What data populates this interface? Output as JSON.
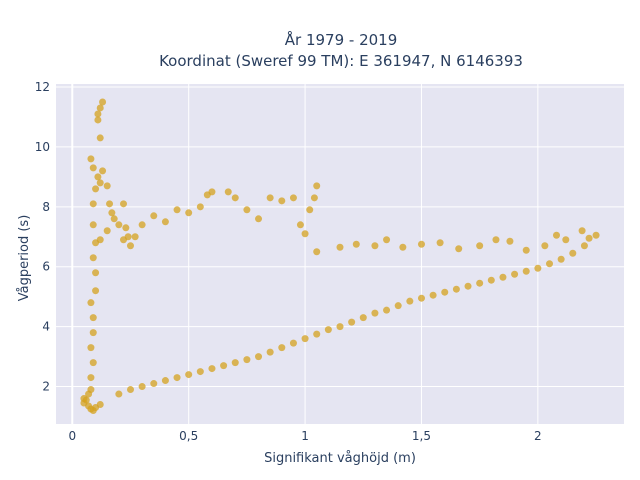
{
  "chart_data": {
    "type": "scatter",
    "title_line1": "År 1979 - 2019",
    "title_line2": "Koordinat (Sweref 99 TM): E 361947, N 6146393",
    "xlabel": "Signifikant våghöjd (m)",
    "ylabel": "Vågperiod (s)",
    "xlim": [
      -0.07,
      2.37
    ],
    "ylim": [
      0.75,
      12.1
    ],
    "x_ticks": [
      {
        "value": 0,
        "label": "0"
      },
      {
        "value": 0.5,
        "label": "0,5"
      },
      {
        "value": 1,
        "label": "1"
      },
      {
        "value": 1.5,
        "label": "1,5"
      },
      {
        "value": 2,
        "label": "2"
      }
    ],
    "y_ticks": [
      {
        "value": 2,
        "label": "2"
      },
      {
        "value": 4,
        "label": "4"
      },
      {
        "value": 6,
        "label": "6"
      },
      {
        "value": 8,
        "label": "8"
      },
      {
        "value": 10,
        "label": "10"
      },
      {
        "value": 12,
        "label": "12"
      }
    ],
    "grid": true,
    "legend": "none",
    "colors": {
      "marker": "#d4a21f",
      "plot_bg": "#e5e5f2",
      "text": "#2a3f5f"
    },
    "series": [
      {
        "marker_opacity": 0.75,
        "points": [
          [
            0.05,
            1.45
          ],
          [
            0.06,
            1.55
          ],
          [
            0.07,
            1.35
          ],
          [
            0.08,
            1.25
          ],
          [
            0.09,
            1.2
          ],
          [
            0.1,
            1.3
          ],
          [
            0.12,
            1.4
          ],
          [
            0.05,
            1.6
          ],
          [
            0.07,
            1.75
          ],
          [
            0.08,
            1.9
          ],
          [
            0.08,
            2.3
          ],
          [
            0.09,
            2.8
          ],
          [
            0.08,
            3.3
          ],
          [
            0.09,
            3.8
          ],
          [
            0.09,
            4.3
          ],
          [
            0.08,
            4.8
          ],
          [
            0.1,
            5.2
          ],
          [
            0.1,
            5.8
          ],
          [
            0.09,
            6.3
          ],
          [
            0.1,
            6.8
          ],
          [
            0.09,
            7.4
          ],
          [
            0.09,
            8.1
          ],
          [
            0.08,
            9.6
          ],
          [
            0.09,
            9.3
          ],
          [
            0.11,
            9.0
          ],
          [
            0.1,
            8.6
          ],
          [
            0.12,
            8.8
          ],
          [
            0.11,
            10.9
          ],
          [
            0.12,
            11.3
          ],
          [
            0.13,
            11.5
          ],
          [
            0.11,
            11.1
          ],
          [
            0.12,
            10.3
          ],
          [
            0.13,
            9.2
          ],
          [
            0.15,
            8.7
          ],
          [
            0.16,
            8.1
          ],
          [
            0.17,
            7.8
          ],
          [
            0.22,
            8.1
          ],
          [
            0.23,
            7.3
          ],
          [
            0.24,
            7.0
          ],
          [
            0.25,
            6.7
          ],
          [
            0.2,
            1.75
          ],
          [
            0.25,
            1.9
          ],
          [
            0.3,
            2.0
          ],
          [
            0.35,
            2.1
          ],
          [
            0.4,
            2.2
          ],
          [
            0.45,
            2.3
          ],
          [
            0.5,
            2.4
          ],
          [
            0.55,
            2.5
          ],
          [
            0.6,
            2.6
          ],
          [
            0.65,
            2.7
          ],
          [
            0.7,
            2.8
          ],
          [
            0.75,
            2.9
          ],
          [
            0.8,
            3.0
          ],
          [
            0.85,
            3.15
          ],
          [
            0.9,
            3.3
          ],
          [
            0.95,
            3.45
          ],
          [
            1.0,
            3.6
          ],
          [
            1.05,
            3.75
          ],
          [
            1.1,
            3.9
          ],
          [
            1.15,
            4.0
          ],
          [
            1.2,
            4.15
          ],
          [
            1.25,
            4.3
          ],
          [
            1.3,
            4.45
          ],
          [
            1.35,
            4.55
          ],
          [
            1.4,
            4.7
          ],
          [
            1.45,
            4.85
          ],
          [
            1.5,
            4.95
          ],
          [
            1.55,
            5.05
          ],
          [
            1.6,
            5.15
          ],
          [
            1.65,
            5.25
          ],
          [
            1.7,
            5.35
          ],
          [
            1.75,
            5.45
          ],
          [
            1.8,
            5.55
          ],
          [
            1.85,
            5.65
          ],
          [
            1.9,
            5.75
          ],
          [
            1.95,
            5.85
          ],
          [
            2.0,
            5.95
          ],
          [
            2.05,
            6.1
          ],
          [
            2.1,
            6.25
          ],
          [
            2.15,
            6.45
          ],
          [
            2.2,
            6.7
          ],
          [
            2.22,
            6.95
          ],
          [
            2.25,
            7.05
          ],
          [
            2.19,
            7.2
          ],
          [
            2.12,
            6.9
          ],
          [
            2.08,
            7.05
          ],
          [
            2.03,
            6.7
          ],
          [
            1.95,
            6.55
          ],
          [
            1.88,
            6.85
          ],
          [
            1.82,
            6.9
          ],
          [
            1.75,
            6.7
          ],
          [
            1.66,
            6.6
          ],
          [
            1.58,
            6.8
          ],
          [
            1.5,
            6.75
          ],
          [
            1.42,
            6.65
          ],
          [
            1.35,
            6.9
          ],
          [
            1.3,
            6.7
          ],
          [
            1.22,
            6.75
          ],
          [
            1.15,
            6.65
          ],
          [
            1.05,
            6.5
          ],
          [
            1.0,
            7.1
          ],
          [
            0.98,
            7.4
          ],
          [
            1.02,
            7.9
          ],
          [
            1.05,
            8.7
          ],
          [
            1.04,
            8.3
          ],
          [
            0.95,
            8.3
          ],
          [
            0.9,
            8.2
          ],
          [
            0.85,
            8.3
          ],
          [
            0.8,
            7.6
          ],
          [
            0.75,
            7.9
          ],
          [
            0.7,
            8.3
          ],
          [
            0.67,
            8.5
          ],
          [
            0.6,
            8.5
          ],
          [
            0.58,
            8.4
          ],
          [
            0.55,
            8.0
          ],
          [
            0.5,
            7.8
          ],
          [
            0.45,
            7.9
          ],
          [
            0.4,
            7.5
          ],
          [
            0.35,
            7.7
          ],
          [
            0.3,
            7.4
          ],
          [
            0.27,
            7.0
          ],
          [
            0.22,
            6.9
          ],
          [
            0.2,
            7.4
          ],
          [
            0.18,
            7.6
          ],
          [
            0.15,
            7.2
          ],
          [
            0.12,
            6.9
          ]
        ]
      }
    ]
  }
}
